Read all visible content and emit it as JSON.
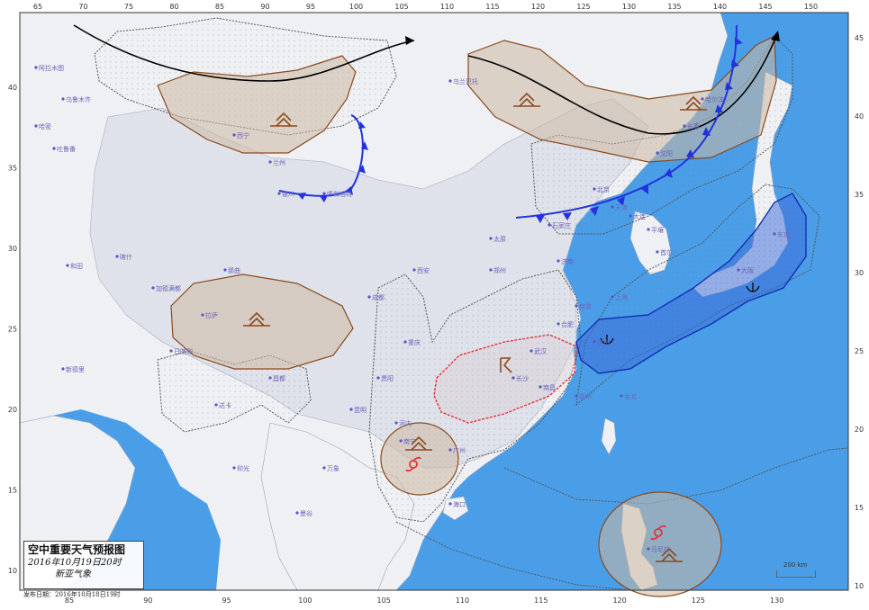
{
  "map": {
    "title": "空中重要天气预报图",
    "valid_time": "2016年10月19日20时",
    "issuer": "新亚气象",
    "issue_line": "发布日期：2016年10月18日19时",
    "scale_label": "200 km",
    "colors": {
      "sea": "#4a9ee8",
      "land": "#eef0f4",
      "china_land": "#dfe2ea",
      "turbulence_fill": "#cdb8a0",
      "turbulence_line": "#8a4a1e",
      "cloud_fill": "#3a6ad8",
      "cloud_line": "#1030b0",
      "cold_front": "#2233dd",
      "jet_stream": "#000000",
      "thunder_line": "#e8333a",
      "hatched_line": "#555555",
      "city": "#5a54c8"
    },
    "axis": {
      "top_labels": [
        "65",
        "70",
        "75",
        "80",
        "85",
        "90",
        "95",
        "100",
        "105",
        "110",
        "115",
        "120",
        "125",
        "130",
        "135",
        "140",
        "145",
        "150"
      ],
      "bottom_labels": [
        "85",
        "90",
        "95",
        "100",
        "105",
        "110",
        "115",
        "120",
        "125",
        "130"
      ],
      "left_labels": [
        "40",
        "35",
        "30",
        "25",
        "20",
        "15",
        "10"
      ],
      "right_labels": [
        "45",
        "40",
        "35",
        "30",
        "25",
        "20",
        "15",
        "10"
      ]
    },
    "symbols": [
      "moderate-turbulence",
      "icing",
      "thunderstorm",
      "tropical-cyclone",
      "cold-front",
      "jet-stream"
    ],
    "cities": [
      "乌鲁木齐",
      "哈密",
      "吐鲁番",
      "和田",
      "喀什",
      "西宁",
      "兰州",
      "银川",
      "呼和浩特",
      "北京",
      "天津",
      "石家庄",
      "太原",
      "济南",
      "郑州",
      "西安",
      "成都",
      "重庆",
      "贵阳",
      "昆明",
      "南宁",
      "广州",
      "长沙",
      "南昌",
      "武汉",
      "合肥",
      "南京",
      "上海",
      "杭州",
      "福州",
      "台北",
      "海口",
      "拉萨",
      "日喀则",
      "那曲",
      "昌都",
      "沈阳",
      "长春",
      "哈尔滨",
      "大连",
      "首尔",
      "东京",
      "大阪",
      "平壤",
      "曼谷",
      "河内",
      "万象",
      "仰光",
      "达卡",
      "马尼拉",
      "新德里",
      "加德满都",
      "阿拉木图",
      "乌兰巴托"
    ]
  }
}
